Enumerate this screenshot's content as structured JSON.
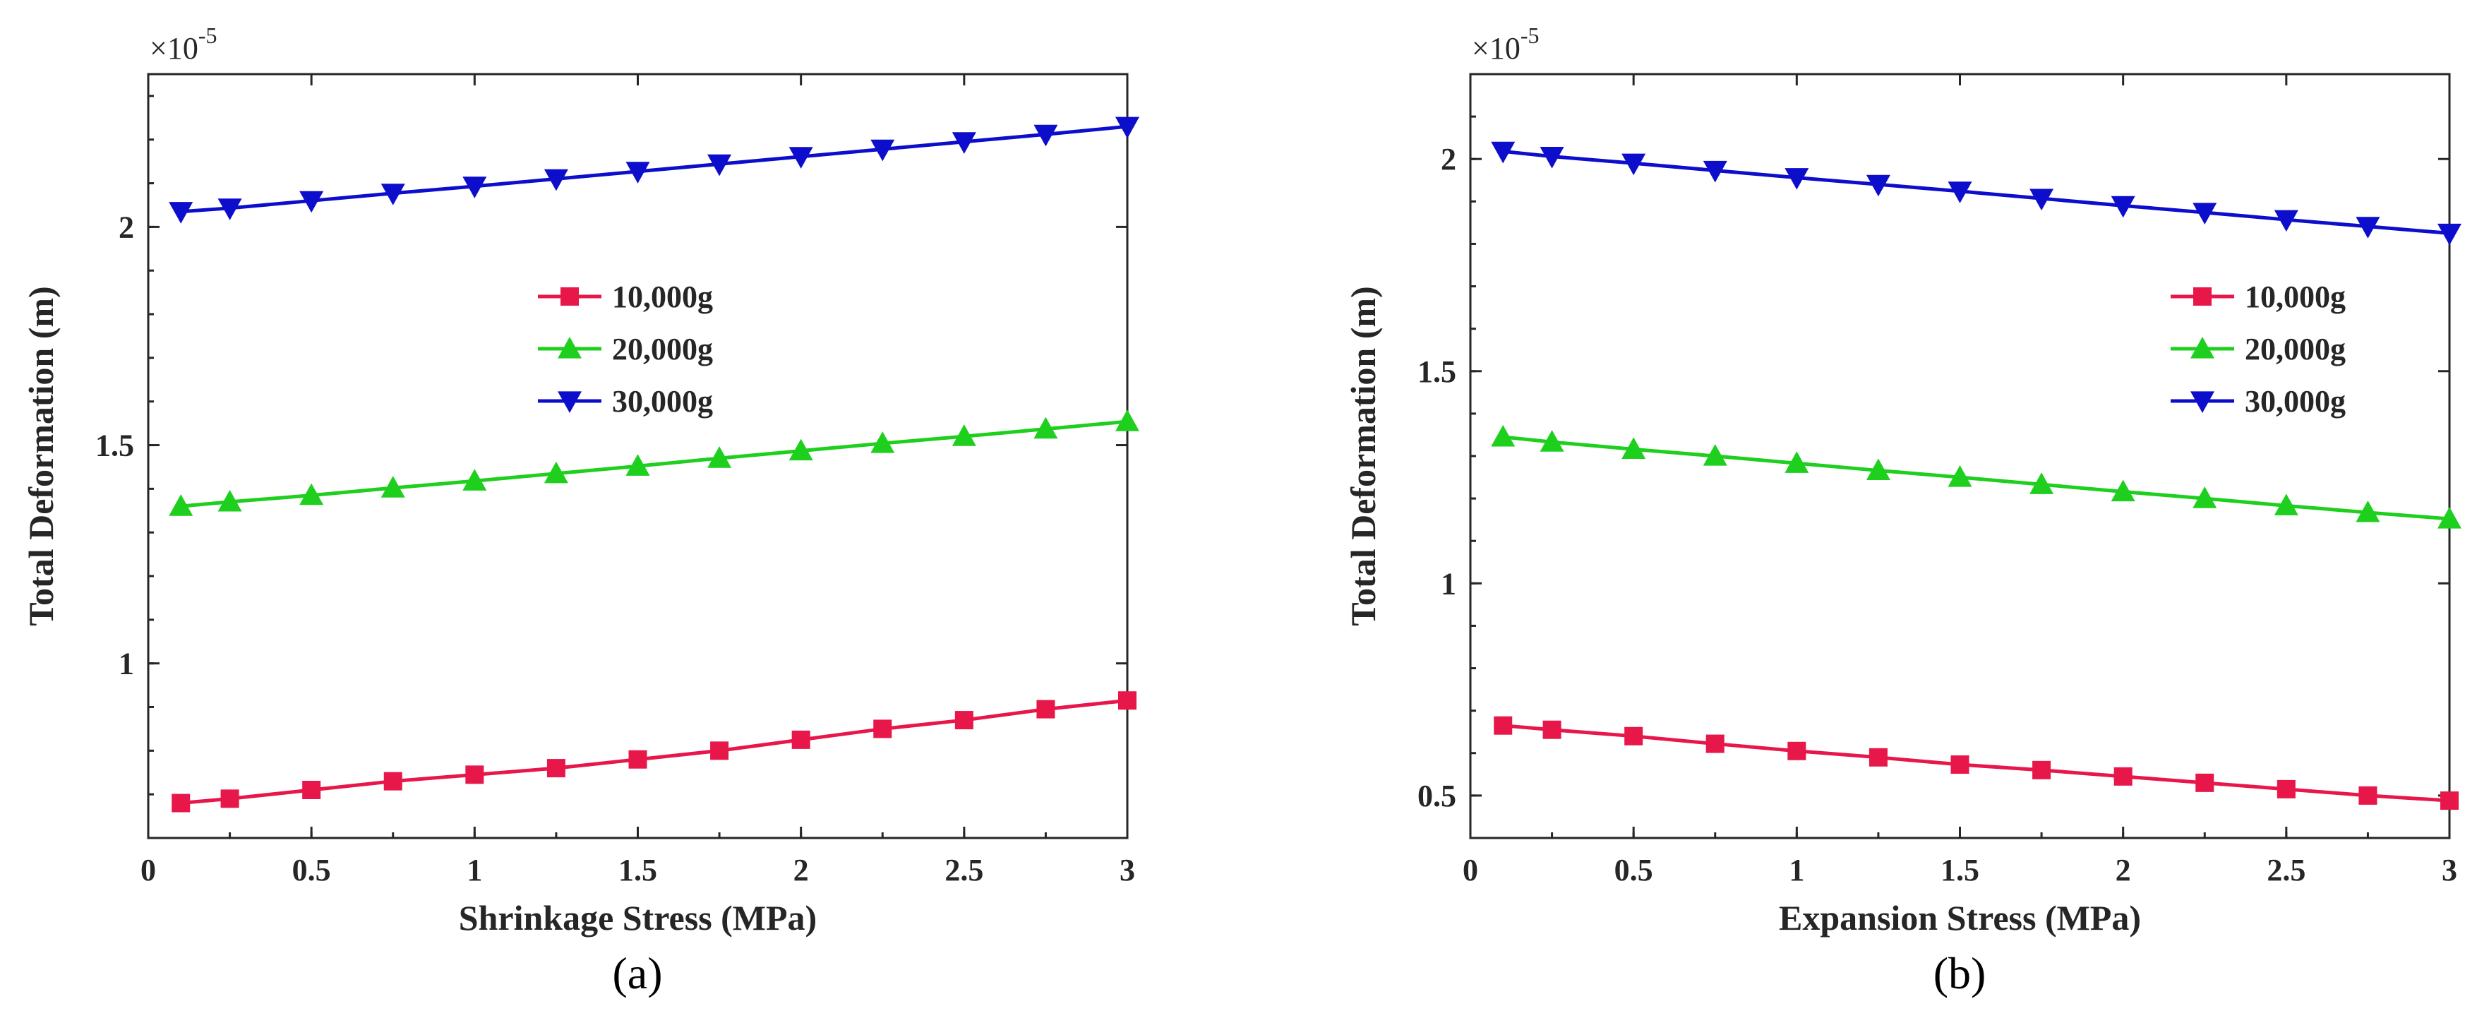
{
  "chart_data": [
    {
      "type": "line",
      "panel_label": "(a)",
      "xlabel": "Shrinkage Stress (MPa)",
      "ylabel": "Total Deformation (m)",
      "exponent_base": "×10",
      "exponent_power": "-5",
      "xlim": [
        0,
        3
      ],
      "ylim": [
        0.6,
        2.35
      ],
      "xticks": [
        0,
        0.5,
        1,
        1.5,
        2,
        2.5,
        3
      ],
      "yticks": [
        1,
        1.5,
        2
      ],
      "grid": false,
      "legend_position": "center",
      "x": [
        0.1,
        0.25,
        0.5,
        0.75,
        1,
        1.25,
        1.5,
        1.75,
        2,
        2.25,
        2.5,
        2.75,
        3
      ],
      "series": [
        {
          "name": "10,000g",
          "color": "#e8174a",
          "marker": "square",
          "values": [
            0.68,
            0.69,
            0.71,
            0.73,
            0.745,
            0.76,
            0.78,
            0.8,
            0.825,
            0.85,
            0.87,
            0.895,
            0.915
          ]
        },
        {
          "name": "20,000g",
          "color": "#1ecf1e",
          "marker": "triangle-up",
          "values": [
            1.36,
            1.37,
            1.385,
            1.402,
            1.418,
            1.435,
            1.452,
            1.47,
            1.487,
            1.504,
            1.52,
            1.537,
            1.554
          ]
        },
        {
          "name": "30,000g",
          "color": "#0d0dcc",
          "marker": "triangle-down",
          "values": [
            2.035,
            2.043,
            2.06,
            2.077,
            2.093,
            2.11,
            2.127,
            2.144,
            2.161,
            2.178,
            2.195,
            2.212,
            2.23
          ]
        }
      ]
    },
    {
      "type": "line",
      "panel_label": "(b)",
      "xlabel": "Expansion Stress (MPa)",
      "ylabel": "Total Deformation (m)",
      "exponent_base": "×10",
      "exponent_power": "-5",
      "xlim": [
        0,
        3
      ],
      "ylim": [
        0.4,
        2.2
      ],
      "xticks": [
        0,
        0.5,
        1,
        1.5,
        2,
        2.5,
        3
      ],
      "yticks": [
        0.5,
        1,
        1.5,
        2
      ],
      "grid": false,
      "legend_position": "right",
      "x": [
        0.1,
        0.25,
        0.5,
        0.75,
        1,
        1.25,
        1.5,
        1.75,
        2,
        2.25,
        2.5,
        2.75,
        3
      ],
      "series": [
        {
          "name": "10,000g",
          "color": "#e8174a",
          "marker": "square",
          "values": [
            0.665,
            0.655,
            0.64,
            0.622,
            0.605,
            0.59,
            0.573,
            0.56,
            0.545,
            0.53,
            0.515,
            0.5,
            0.488
          ]
        },
        {
          "name": "20,000g",
          "color": "#1ecf1e",
          "marker": "triangle-up",
          "values": [
            1.345,
            1.333,
            1.316,
            1.3,
            1.283,
            1.266,
            1.25,
            1.233,
            1.216,
            1.2,
            1.183,
            1.167,
            1.152
          ]
        },
        {
          "name": "30,000g",
          "color": "#0d0dcc",
          "marker": "triangle-down",
          "values": [
            2.018,
            2.006,
            1.99,
            1.973,
            1.956,
            1.94,
            1.924,
            1.907,
            1.89,
            1.874,
            1.857,
            1.841,
            1.825
          ]
        }
      ]
    }
  ]
}
